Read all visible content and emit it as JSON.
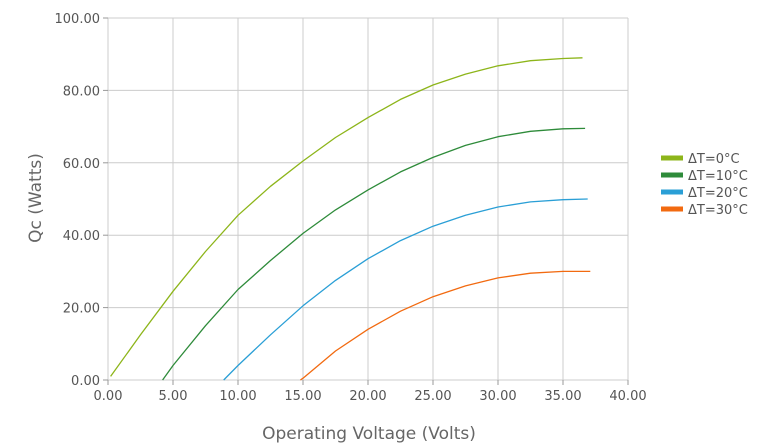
{
  "chart_data": {
    "type": "line",
    "title": "",
    "xlabel": "Operating Voltage (Volts)",
    "ylabel": "Qc (Watts)",
    "xlim": [
      0,
      40
    ],
    "ylim": [
      0,
      100
    ],
    "x_ticks": [
      "0.00",
      "5.00",
      "10.00",
      "15.00",
      "20.00",
      "25.00",
      "30.00",
      "35.00",
      "40.00"
    ],
    "y_ticks": [
      "0.00",
      "20.00",
      "40.00",
      "60.00",
      "80.00",
      "100.00"
    ],
    "grid": true,
    "legend_position": "right",
    "series": [
      {
        "name": "ΔT=0°C",
        "color": "#8db51a",
        "x": [
          0.2,
          2.5,
          5,
          7.5,
          10,
          12.5,
          15,
          17.5,
          20,
          22.5,
          25,
          27.5,
          30,
          32.5,
          35,
          36.5
        ],
        "y": [
          1,
          12.5,
          24.5,
          35.5,
          45.5,
          53.5,
          60.5,
          67,
          72.5,
          77.5,
          81.5,
          84.5,
          86.8,
          88.2,
          88.8,
          89
        ]
      },
      {
        "name": "ΔT=10°C",
        "color": "#2e8b3a",
        "x": [
          4.2,
          5,
          7.5,
          10,
          12.5,
          15,
          17.5,
          20,
          22.5,
          25,
          27.5,
          30,
          32.5,
          35,
          36.7
        ],
        "y": [
          0,
          4,
          15,
          25,
          33,
          40.5,
          47,
          52.5,
          57.5,
          61.5,
          64.8,
          67.2,
          68.7,
          69.4,
          69.5
        ]
      },
      {
        "name": "ΔT=20°C",
        "color": "#2a9fd6",
        "x": [
          8.9,
          10,
          12.5,
          15,
          17.5,
          20,
          22.5,
          25,
          27.5,
          30,
          32.5,
          35,
          36.9
        ],
        "y": [
          0,
          4,
          12.5,
          20.5,
          27.5,
          33.5,
          38.5,
          42.5,
          45.5,
          47.8,
          49.2,
          49.8,
          50
        ]
      },
      {
        "name": "ΔT=30°C",
        "color": "#f26a10",
        "x": [
          14.8,
          15,
          17.5,
          20,
          22.5,
          25,
          27.5,
          30,
          32.5,
          35,
          37.1
        ],
        "y": [
          0,
          0.5,
          8,
          14,
          19,
          23,
          26,
          28.2,
          29.5,
          30,
          30
        ]
      }
    ]
  }
}
